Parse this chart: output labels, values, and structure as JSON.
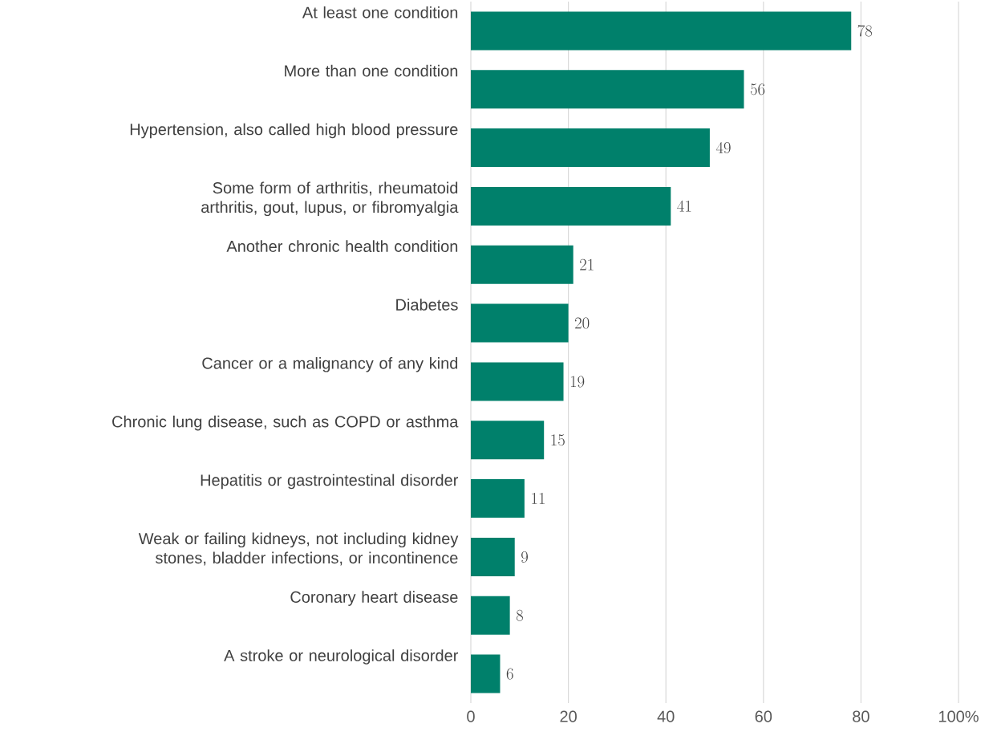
{
  "chart_data": {
    "type": "bar",
    "orientation": "horizontal",
    "categories": [
      "At least one condition",
      "More than one condition",
      "Hypertension, also called high blood pressure",
      "Some form of arthritis, rheumatoid arthritis, gout, lupus, or fibromyalgia",
      "Another chronic health condition",
      "Diabetes",
      "Cancer or a malignancy of any kind",
      "Chronic lung disease, such as COPD or asthma",
      "Hepatitis or gastrointestinal disorder",
      "Weak or failing kidneys, not including kidney stones, bladder infections, or incontinence",
      "Coronary heart disease",
      "A stroke or neurological disorder"
    ],
    "values": [
      78,
      56,
      49,
      41,
      21,
      20,
      19,
      15,
      11,
      9,
      8,
      6
    ],
    "color": "#00806b",
    "xlim": [
      0,
      100
    ],
    "xticks": [
      0,
      20,
      40,
      60,
      80,
      {
        "value": 100,
        "label": "100%"
      }
    ],
    "grid": "x",
    "data_labels": true
  }
}
